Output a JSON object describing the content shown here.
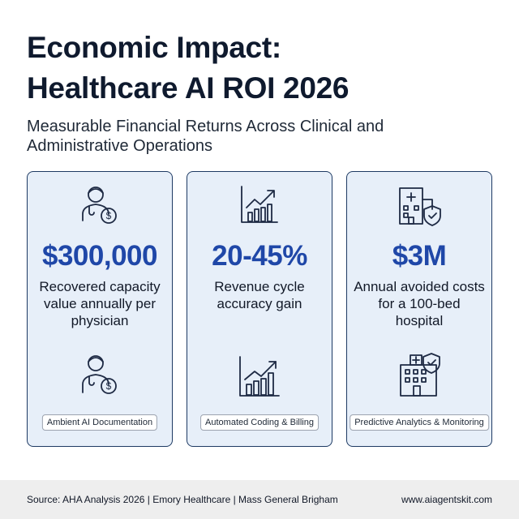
{
  "header": {
    "title_lines": [
      "Economic Impact:",
      "Healthcare AI ROI 2026"
    ],
    "subtitle": "Measurable Financial Returns Across Clinical and Administrative Operations"
  },
  "cards": [
    {
      "stat": "$300,000",
      "description": "Recovered capacity value annually per physician",
      "tag": "Ambient AI Documentation"
    },
    {
      "stat": "20-45%",
      "description": "Revenue cycle accuracy gain",
      "tag": "Automated Coding & Billing"
    },
    {
      "stat": "$3M",
      "description": "Annual avoided costs for a 100-bed hospital",
      "tag": "Predictive Analytics & Monitoring"
    }
  ],
  "footer": {
    "source": "Source: AHA Analysis 2026 | Emory Healthcare | Mass General Brigham",
    "site": "www.aiagentskit.com"
  }
}
